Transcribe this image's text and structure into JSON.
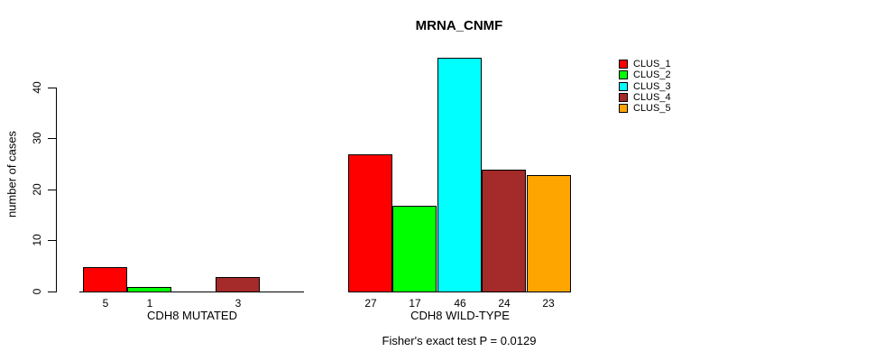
{
  "title": "MRNA_CNMF",
  "footer": "Fisher's exact test P = 0.0129",
  "chart_data": {
    "type": "bar",
    "title": "MRNA_CNMF",
    "xlabel": "",
    "ylabel": "number of cases",
    "ylim": [
      0,
      46
    ],
    "yticks": [
      0,
      10,
      20,
      30,
      40
    ],
    "grid": false,
    "legend_position": "top-right",
    "series_names": [
      "CLUS_1",
      "CLUS_2",
      "CLUS_3",
      "CLUS_4",
      "CLUS_5"
    ],
    "colors": [
      "#FF0000",
      "#00FF00",
      "#00FFFF",
      "#A52A2A",
      "#FFA500"
    ],
    "groups": [
      {
        "label": "CDH8 MUTATED",
        "values": [
          5,
          1,
          0,
          3,
          0
        ],
        "bar_labels": [
          "5",
          "1",
          "",
          "3",
          ""
        ]
      },
      {
        "label": "CDH8 WILD-TYPE",
        "values": [
          27,
          17,
          46,
          24,
          23
        ],
        "bar_labels": [
          "27",
          "17",
          "46",
          "24",
          "23"
        ]
      }
    ],
    "annotation": "Fisher's exact test P = 0.0129"
  },
  "legend": {
    "items": [
      {
        "label": "CLUS_1",
        "color": "#FF0000"
      },
      {
        "label": "CLUS_2",
        "color": "#00FF00"
      },
      {
        "label": "CLUS_3",
        "color": "#00FFFF"
      },
      {
        "label": "CLUS_4",
        "color": "#A52A2A"
      },
      {
        "label": "CLUS_5",
        "color": "#FFA500"
      }
    ]
  }
}
